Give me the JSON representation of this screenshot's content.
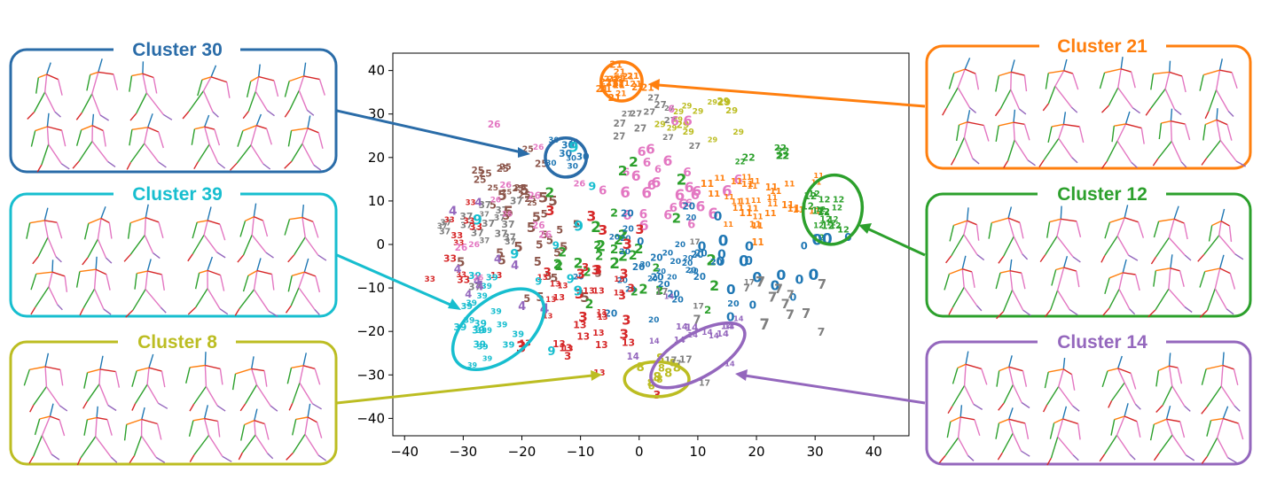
{
  "chart_data": {
    "type": "scatter",
    "title": "",
    "xlabel": "",
    "ylabel": "",
    "xlim": [
      -42,
      46
    ],
    "ylim": [
      -44,
      44
    ],
    "xticks": [
      "−40",
      "−30",
      "−20",
      "−10",
      "0",
      "10",
      "20",
      "30",
      "40"
    ],
    "xtick_values": [
      -40,
      -30,
      -20,
      -10,
      0,
      10,
      20,
      30,
      40
    ],
    "yticks": [
      "40",
      "30",
      "20",
      "10",
      "0",
      "−10",
      "−20",
      "−30",
      "−40"
    ],
    "ytick_values": [
      40,
      30,
      20,
      10,
      0,
      -10,
      -20,
      -30,
      -40
    ],
    "grid": false,
    "colors": {
      "0": "#1f77b4",
      "1": "#ff7f0e",
      "2": "#2ca02c",
      "3": "#d62728",
      "4": "#9467bd",
      "5": "#8c564b",
      "6": "#e377c2",
      "7": "#7f7f7f",
      "8": "#bcbd22",
      "9": "#17becf"
    },
    "groups": [
      {
        "id": "21",
        "color": "#ff7f0e",
        "cx": -3,
        "cy": 37,
        "sx": 1.6,
        "sy": 2.2,
        "n": 22
      },
      {
        "id": "29",
        "color": "#bcbd22",
        "cx": 10,
        "cy": 29,
        "sx": 4,
        "sy": 3,
        "n": 14
      },
      {
        "id": "27",
        "color": "#7f7f7f",
        "cx": 3,
        "cy": 28,
        "sx": 4,
        "sy": 3,
        "n": 12
      },
      {
        "id": "30",
        "color": "#1f77b4",
        "cx": -13,
        "cy": 20,
        "sx": 2,
        "sy": 2.5,
        "n": 8
      },
      {
        "id": "25",
        "color": "#8c564b",
        "cx": -21,
        "cy": 15,
        "sx": 3,
        "sy": 4,
        "n": 14
      },
      {
        "id": "6",
        "color": "#e377c2",
        "cx": 3,
        "cy": 13,
        "sx": 6,
        "sy": 6,
        "n": 32
      },
      {
        "id": "11",
        "color": "#ff7f0e",
        "cx": 22,
        "cy": 10,
        "sx": 6,
        "sy": 5,
        "n": 32
      },
      {
        "id": "12",
        "color": "#2ca02c",
        "cx": 32,
        "cy": 7,
        "sx": 2,
        "sy": 3,
        "n": 18
      },
      {
        "id": "37",
        "color": "#7f7f7f",
        "cx": -27,
        "cy": 5,
        "sx": 4,
        "sy": 6,
        "n": 18
      },
      {
        "id": "33",
        "color": "#d62728",
        "cx": -31,
        "cy": 3,
        "sx": 3,
        "sy": 5,
        "n": 10
      },
      {
        "id": "5",
        "color": "#8c564b",
        "cx": -18,
        "cy": 0,
        "sx": 5,
        "sy": 6,
        "n": 28
      },
      {
        "id": "2",
        "color": "#2ca02c",
        "cx": -3,
        "cy": -3,
        "sx": 6,
        "sy": 8,
        "n": 32
      },
      {
        "id": "20",
        "color": "#1f77b4",
        "cx": 7,
        "cy": -4,
        "sx": 6,
        "sy": 6,
        "n": 34
      },
      {
        "id": "0",
        "color": "#1f77b4",
        "cx": 22,
        "cy": -5,
        "sx": 7,
        "sy": 6,
        "n": 22
      },
      {
        "id": "13",
        "color": "#d62728",
        "cx": -10,
        "cy": -18,
        "sx": 5,
        "sy": 7,
        "n": 24
      },
      {
        "id": "39",
        "color": "#17becf",
        "cx": -26,
        "cy": -19,
        "sx": 3,
        "sy": 4,
        "n": 20
      },
      {
        "id": "8",
        "color": "#bcbd22",
        "cx": 3,
        "cy": -30,
        "sx": 2.5,
        "sy": 1.6,
        "n": 10
      },
      {
        "id": "14",
        "color": "#9467bd",
        "cx": 9,
        "cy": -23,
        "sx": 4,
        "sy": 3,
        "n": 14
      },
      {
        "id": "4",
        "color": "#9467bd",
        "cx": -25,
        "cy": -8,
        "sx": 6,
        "sy": 8,
        "n": 10
      },
      {
        "id": "7",
        "color": "#7f7f7f",
        "cx": 20,
        "cy": -15,
        "sx": 10,
        "sy": 5,
        "n": 12
      },
      {
        "id": "3",
        "color": "#d62728",
        "cx": -8,
        "cy": -10,
        "sx": 7,
        "sy": 12,
        "n": 20
      },
      {
        "id": "9",
        "color": "#17becf",
        "cx": -15,
        "cy": 2,
        "sx": 8,
        "sy": 10,
        "n": 10
      },
      {
        "id": "26",
        "color": "#e377c2",
        "cx": -20,
        "cy": 5,
        "sx": 6,
        "sy": 8,
        "n": 12
      },
      {
        "id": "17",
        "color": "#7f7f7f",
        "cx": 12,
        "cy": -18,
        "sx": 6,
        "sy": 6,
        "n": 8
      },
      {
        "id": "22",
        "color": "#2ca02c",
        "cx": 22,
        "cy": 20,
        "sx": 3,
        "sy": 2,
        "n": 6
      }
    ],
    "annotated_clusters": [
      {
        "name": "Cluster 30",
        "color": "#2a6ca8",
        "ellipse": {
          "cx": -12.5,
          "cy": 20,
          "rx": 3.5,
          "ry": 4.5,
          "rot": 0
        }
      },
      {
        "name": "Cluster 21",
        "color": "#ff7f0e",
        "ellipse": {
          "cx": -3,
          "cy": 37.5,
          "rx": 3.5,
          "ry": 4.5,
          "rot": 0
        }
      },
      {
        "name": "Cluster 12",
        "color": "#2ca02c",
        "ellipse": {
          "cx": 33,
          "cy": 8,
          "rx": 5,
          "ry": 8,
          "rot": 10
        }
      },
      {
        "name": "Cluster 39",
        "color": "#17becf",
        "ellipse": {
          "cx": -24,
          "cy": -19.5,
          "rx": 9,
          "ry": 7,
          "rot": -38
        }
      },
      {
        "name": "Cluster 8",
        "color": "#bcbd22",
        "ellipse": {
          "cx": 3,
          "cy": -31,
          "rx": 5.5,
          "ry": 4,
          "rot": 0
        }
      },
      {
        "name": "Cluster 14",
        "color": "#9467bd",
        "ellipse": {
          "cx": 10,
          "cy": -25.5,
          "rx": 9,
          "ry": 5,
          "rot": -30
        }
      }
    ]
  },
  "panels": {
    "cluster30": {
      "title": "Cluster 30",
      "color": "#2a6ca8"
    },
    "cluster39": {
      "title": "Cluster 39",
      "color": "#17becf"
    },
    "cluster8": {
      "title": "Cluster 8",
      "color": "#bcbd22"
    },
    "cluster21": {
      "title": "Cluster 21",
      "color": "#ff7f0e"
    },
    "cluster12": {
      "title": "Cluster 12",
      "color": "#2ca02c"
    },
    "cluster14": {
      "title": "Cluster 14",
      "color": "#9467bd"
    }
  }
}
